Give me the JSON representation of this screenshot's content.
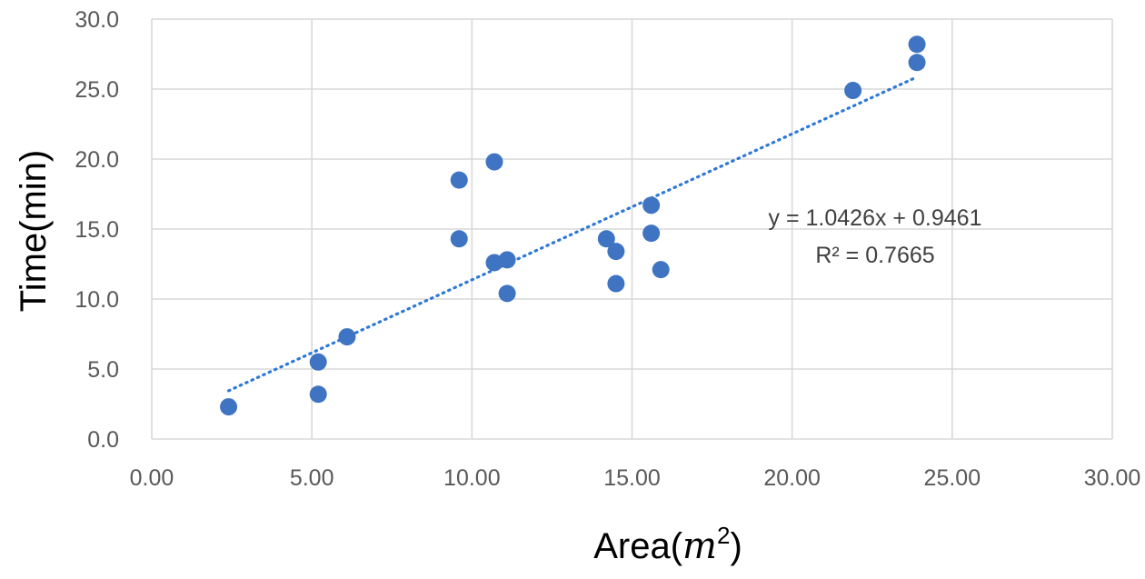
{
  "chart_data": {
    "type": "scatter",
    "title": "",
    "xlabel": "Area",
    "xlabel_unit_base": "m",
    "xlabel_unit_exp": "2",
    "ylabel": "Time(min)",
    "xlim": [
      0,
      30
    ],
    "ylim": [
      0,
      30
    ],
    "grid": true,
    "legend": "none",
    "x_ticks": [
      0,
      5,
      10,
      15,
      20,
      25,
      30
    ],
    "y_ticks": [
      0,
      5,
      10,
      15,
      20,
      25,
      30
    ],
    "x_tick_labels": [
      "0.00",
      "5.00",
      "10.00",
      "15.00",
      "20.00",
      "25.00",
      "30.00"
    ],
    "y_tick_labels": [
      "0.0",
      "5.0",
      "10.0",
      "15.0",
      "20.0",
      "25.0",
      "30.0"
    ],
    "points": [
      {
        "x": 2.4,
        "y": 2.3
      },
      {
        "x": 5.2,
        "y": 5.5
      },
      {
        "x": 5.2,
        "y": 3.2
      },
      {
        "x": 6.1,
        "y": 7.3
      },
      {
        "x": 9.6,
        "y": 18.5
      },
      {
        "x": 9.6,
        "y": 14.3
      },
      {
        "x": 10.7,
        "y": 19.8
      },
      {
        "x": 10.7,
        "y": 12.6
      },
      {
        "x": 11.1,
        "y": 12.8
      },
      {
        "x": 11.1,
        "y": 10.4
      },
      {
        "x": 14.2,
        "y": 14.3
      },
      {
        "x": 14.5,
        "y": 13.4
      },
      {
        "x": 14.5,
        "y": 11.1
      },
      {
        "x": 15.6,
        "y": 16.7
      },
      {
        "x": 15.6,
        "y": 14.7
      },
      {
        "x": 15.9,
        "y": 12.1
      },
      {
        "x": 21.9,
        "y": 24.9
      },
      {
        "x": 23.9,
        "y": 28.2
      },
      {
        "x": 23.9,
        "y": 26.9
      }
    ],
    "trendline": {
      "slope": 1.0426,
      "intercept": 0.9461,
      "x_range": [
        2.4,
        23.9
      ],
      "style": "dotted"
    },
    "annotations": [
      "y = 1.0426x + 0.9461",
      "R² = 0.7665"
    ],
    "colors": {
      "marker": "#3f74c3",
      "trendline": "#2e78d6",
      "grid": "#d9d9d9",
      "tick_text": "#595959"
    }
  }
}
